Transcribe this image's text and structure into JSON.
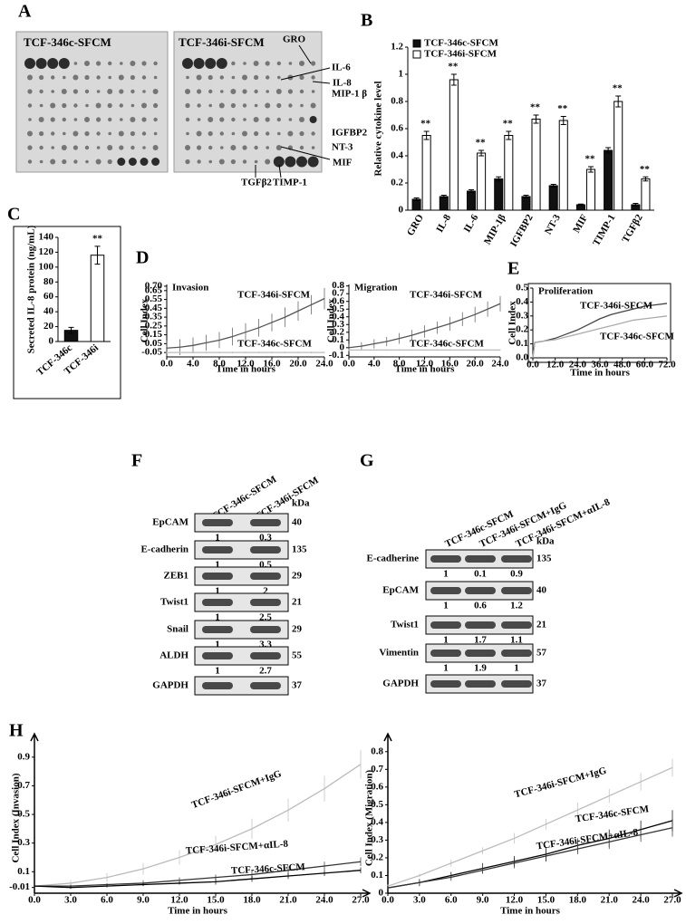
{
  "panel_labels": [
    "A",
    "B",
    "C",
    "D",
    "E",
    "F",
    "G",
    "H"
  ],
  "array_panel": {
    "titles": [
      "TCF-346c-SFCM",
      "TCF-346i-SFCM"
    ],
    "annotations": [
      "GRO",
      "IL-6",
      "IL-8",
      "MIP-1 β",
      "IGFBP2",
      "NT-3",
      "MIF",
      "TGFβ2",
      "TIMP-1"
    ]
  },
  "chart_data": [
    {
      "type": "bar",
      "ylabel": "Relative cytokine level",
      "categories": [
        "GRO",
        "IL-8",
        "IL-6",
        "MIP-1β",
        "IGFBP2",
        "NT-3",
        "MIF",
        "TIMP-1",
        "TGFβ2"
      ],
      "series": [
        {
          "name": "TCF-346c-SFCM",
          "color": "#111111",
          "values": [
            0.08,
            0.1,
            0.14,
            0.23,
            0.1,
            0.18,
            0.04,
            0.44,
            0.04
          ],
          "errors": [
            0.01,
            0.01,
            0.01,
            0.015,
            0.01,
            0.01,
            0.005,
            0.02,
            0.01
          ]
        },
        {
          "name": "TCF-346i-SFCM",
          "color": "#ffffff",
          "values": [
            0.55,
            0.96,
            0.42,
            0.55,
            0.67,
            0.66,
            0.3,
            0.8,
            0.23
          ],
          "errors": [
            0.03,
            0.04,
            0.02,
            0.03,
            0.03,
            0.03,
            0.02,
            0.04,
            0.015
          ]
        }
      ],
      "significance": [
        "**",
        "**",
        "**",
        "**",
        "**",
        "**",
        "**",
        "**",
        "**"
      ],
      "ylim": [
        0,
        1.2
      ],
      "yticks": [
        0,
        0.2,
        0.4,
        0.6,
        0.8,
        1,
        1.2
      ]
    },
    {
      "type": "bar",
      "ylabel": "Secreted IL-8 protein (ng/mL)",
      "categories": [
        "TCF-346c",
        "TCF-346i"
      ],
      "values": [
        15,
        116
      ],
      "errors": [
        4,
        12
      ],
      "colors": [
        "#111111",
        "#ffffff"
      ],
      "significance": [
        null,
        "**"
      ],
      "ylim": [
        0,
        140
      ],
      "yticks": [
        0,
        20,
        40,
        60,
        80,
        100,
        120,
        140
      ]
    },
    {
      "type": "line",
      "title": "Invasion",
      "ylabel": "Cell Index",
      "xlabel": "Time in hours",
      "x": [
        0,
        2,
        4,
        6,
        8,
        10,
        12,
        14,
        16,
        18,
        20,
        22,
        24
      ],
      "series": [
        {
          "name": "TCF-346i-SFCM",
          "color": "#555555",
          "values": [
            0,
            0.01,
            0.03,
            0.06,
            0.09,
            0.13,
            0.18,
            0.23,
            0.29,
            0.35,
            0.42,
            0.49,
            0.56
          ],
          "errors": [
            0.09,
            0.09,
            0.09,
            0.09,
            0.09,
            0.1,
            0.1,
            0.1,
            0.1,
            0.11,
            0.11,
            0.11,
            0.12
          ]
        },
        {
          "name": "TCF-346c-SFCM",
          "color": "#bbbbbb",
          "values": [
            -0.05,
            -0.05,
            -0.05,
            -0.05,
            -0.05,
            -0.05,
            -0.05,
            -0.05,
            -0.05,
            -0.05,
            -0.05,
            -0.05,
            -0.05
          ],
          "errors": [
            0.01,
            0.01,
            0.01,
            0.01,
            0.01,
            0.01,
            0.01,
            0.01,
            0.01,
            0.01,
            0.01,
            0.01,
            0.01
          ]
        }
      ],
      "xlim": [
        0,
        24
      ],
      "xticks": [
        {
          "value": 0,
          "label": "0.0"
        },
        {
          "value": 4,
          "label": "4.0"
        },
        {
          "value": 8,
          "label": "8.0"
        },
        {
          "value": 12,
          "label": "12.0"
        },
        {
          "value": 16,
          "label": "16.0"
        },
        {
          "value": 20,
          "label": "20.0"
        },
        {
          "value": 24,
          "label": "24.0"
        }
      ],
      "ylim": [
        -0.1,
        0.72
      ],
      "yticks": [
        -0.05,
        0.05,
        0.15,
        0.25,
        0.35,
        0.45,
        0.55,
        0.65,
        {
          "value": 0.7,
          "label": "0.70"
        }
      ]
    },
    {
      "type": "line",
      "title": "Migration",
      "ylabel": "Cell Index",
      "xlabel": "Time in hours",
      "x": [
        0,
        2,
        4,
        6,
        8,
        10,
        12,
        14,
        16,
        18,
        20,
        22,
        24
      ],
      "series": [
        {
          "name": "TCF-346i-SFCM",
          "color": "#555555",
          "values": [
            0,
            0.02,
            0.05,
            0.08,
            0.12,
            0.16,
            0.21,
            0.26,
            0.31,
            0.37,
            0.43,
            0.5,
            0.57
          ],
          "errors": [
            0.05,
            0.05,
            0.06,
            0.06,
            0.07,
            0.07,
            0.08,
            0.08,
            0.09,
            0.09,
            0.1,
            0.1,
            0.1
          ]
        },
        {
          "name": "TCF-346c-SFCM",
          "color": "#bbbbbb",
          "values": [
            -0.03,
            -0.03,
            -0.03,
            -0.03,
            -0.03,
            -0.03,
            -0.03,
            -0.03,
            -0.03,
            -0.03,
            -0.03,
            -0.03,
            -0.03
          ],
          "errors": [
            0.01,
            0.01,
            0.01,
            0.01,
            0.01,
            0.01,
            0.01,
            0.01,
            0.01,
            0.01,
            0.01,
            0.01,
            0.01
          ]
        }
      ],
      "xlim": [
        0,
        24
      ],
      "xticks": [
        {
          "value": 0,
          "label": "0.0"
        },
        {
          "value": 4,
          "label": "4.0"
        },
        {
          "value": 8,
          "label": "8.0"
        },
        {
          "value": 12,
          "label": "12.0"
        },
        {
          "value": 16,
          "label": "16.0"
        },
        {
          "value": 20,
          "label": "20.0"
        },
        {
          "value": 24,
          "label": "24.0"
        }
      ],
      "ylim": [
        -0.12,
        0.82
      ],
      "yticks": [
        -0.1,
        0,
        0.1,
        0.2,
        0.3,
        0.4,
        0.5,
        0.6,
        0.7,
        0.8
      ]
    },
    {
      "type": "line",
      "title": "Proliferation",
      "ylabel": "Cell Index",
      "xlabel": "Time in hours",
      "x": [
        0,
        1,
        6,
        12,
        18,
        24,
        30,
        36,
        42,
        48,
        54,
        60,
        66,
        72
      ],
      "series": [
        {
          "name": "TCF-346i-SFCM",
          "color": "#444444",
          "values": [
            0,
            0.11,
            0.12,
            0.14,
            0.17,
            0.2,
            0.24,
            0.28,
            0.31,
            0.33,
            0.35,
            0.37,
            0.38,
            0.39
          ]
        },
        {
          "name": "TCF-346c-SFCM",
          "color": "#aaaaaa",
          "values": [
            0,
            0.11,
            0.12,
            0.13,
            0.15,
            0.17,
            0.19,
            0.21,
            0.23,
            0.25,
            0.27,
            0.28,
            0.29,
            0.3
          ]
        }
      ],
      "xlim": [
        0,
        72
      ],
      "xticks": [
        {
          "value": 0,
          "label": "0.0"
        },
        {
          "value": 12,
          "label": "12.0"
        },
        {
          "value": 24,
          "label": "24.0"
        },
        {
          "value": 36,
          "label": "36.0"
        },
        {
          "value": 48,
          "label": "48.0"
        },
        {
          "value": 60,
          "label": "60.0"
        },
        {
          "value": 72,
          "label": "72.0"
        }
      ],
      "ylim": [
        0,
        0.5
      ],
      "yticks": [
        {
          "value": 0,
          "label": "0.0"
        },
        0.1,
        0.2,
        0.3,
        0.4,
        0.5
      ]
    },
    {
      "type": "line",
      "ylabel": "Cell Index (Invasion)",
      "xlabel": "Time in hours",
      "x": [
        0,
        3,
        6,
        9,
        12,
        15,
        18,
        21,
        24,
        27
      ],
      "series": [
        {
          "name": "TCF-346i-SFCM+IgG",
          "color": "#bbbbbb",
          "values": [
            0,
            0.02,
            0.06,
            0.12,
            0.2,
            0.29,
            0.4,
            0.53,
            0.68,
            0.85
          ],
          "errors": [
            0.01,
            0.02,
            0.03,
            0.04,
            0.05,
            0.06,
            0.07,
            0.08,
            0.09,
            0.1
          ]
        },
        {
          "name": "TCF-346i-SFCM+αIL-8",
          "color": "#333333",
          "values": [
            0,
            0,
            0.01,
            0.02,
            0.04,
            0.06,
            0.08,
            0.11,
            0.14,
            0.17
          ],
          "errors": [
            0.01,
            0.01,
            0.01,
            0.02,
            0.02,
            0.02,
            0.03,
            0.03,
            0.03,
            0.03
          ]
        },
        {
          "name": "TCF-346c-SFCM",
          "color": "#000000",
          "values": [
            0,
            -0.01,
            0,
            0.01,
            0.02,
            0.03,
            0.05,
            0.07,
            0.09,
            0.11
          ],
          "errors": [
            0.01,
            0.01,
            0.01,
            0.01,
            0.01,
            0.02,
            0.02,
            0.02,
            0.02,
            0.02
          ]
        }
      ],
      "xlim": [
        0,
        27
      ],
      "xticks": [
        {
          "value": 0,
          "label": "0.0"
        },
        {
          "value": 3,
          "label": "3.0"
        },
        {
          "value": 6,
          "label": "6.0"
        },
        {
          "value": 9,
          "label": "9.0"
        },
        {
          "value": 12,
          "label": "12.0"
        },
        {
          "value": 15,
          "label": "15.0"
        },
        {
          "value": 18,
          "label": "18.0"
        },
        {
          "value": 21,
          "label": "21.0"
        },
        {
          "value": 24,
          "label": "24.0"
        },
        {
          "value": 27,
          "label": "27.0"
        }
      ],
      "ylim": [
        -0.05,
        1
      ],
      "yticks": [
        -0.01,
        0.1,
        0.3,
        0.5,
        0.7,
        0.9
      ]
    },
    {
      "type": "line",
      "ylabel": "Cell Index (Migration)",
      "xlabel": "Time in hours",
      "x": [
        0,
        3,
        6,
        9,
        12,
        15,
        18,
        21,
        24,
        27
      ],
      "series": [
        {
          "name": "TCF-346i-SFCM+IgG",
          "color": "#bbbbbb",
          "values": [
            0.04,
            0.1,
            0.17,
            0.24,
            0.31,
            0.39,
            0.47,
            0.55,
            0.63,
            0.71
          ],
          "errors": [
            0.01,
            0.01,
            0.02,
            0.02,
            0.03,
            0.03,
            0.04,
            0.04,
            0.05,
            0.05
          ]
        },
        {
          "name": "TCF-346c-SFCM",
          "color": "#000000",
          "values": [
            0.03,
            0.06,
            0.1,
            0.14,
            0.18,
            0.22,
            0.27,
            0.31,
            0.36,
            0.41
          ],
          "errors": [
            0.01,
            0.02,
            0.02,
            0.03,
            0.03,
            0.04,
            0.04,
            0.05,
            0.05,
            0.06
          ]
        },
        {
          "name": "TCF-346i-SFCM+αIL-8",
          "color": "#333333",
          "values": [
            0.03,
            0.06,
            0.09,
            0.13,
            0.17,
            0.21,
            0.25,
            0.29,
            0.33,
            0.37
          ],
          "errors": [
            0.01,
            0.01,
            0.02,
            0.02,
            0.03,
            0.03,
            0.03,
            0.04,
            0.04,
            0.05
          ]
        }
      ],
      "xlim": [
        0,
        27
      ],
      "xticks": [
        {
          "value": 0,
          "label": "0.0"
        },
        {
          "value": 3,
          "label": "3.0"
        },
        {
          "value": 6,
          "label": "6.0"
        },
        {
          "value": 9,
          "label": "9.0"
        },
        {
          "value": 12,
          "label": "12.0"
        },
        {
          "value": 15,
          "label": "15.0"
        },
        {
          "value": 18,
          "label": "18.0"
        },
        {
          "value": 21,
          "label": "21.0"
        },
        {
          "value": 24,
          "label": "24.0"
        },
        {
          "value": 27,
          "label": "27.0"
        }
      ],
      "ylim": [
        0,
        0.85
      ],
      "yticks": [
        0,
        0.1,
        0.2,
        0.3,
        0.4,
        0.5,
        0.6,
        0.7,
        0.8
      ]
    }
  ],
  "blots": [
    {
      "columns": [
        "TCF-346c-SFCM",
        "TCF-346i-SFCM"
      ],
      "unit": "kDa",
      "rows": [
        {
          "name": "EpCAM",
          "kda": 40,
          "quant": [
            1,
            0.3
          ]
        },
        {
          "name": "E-cadherin",
          "kda": 135,
          "quant": [
            1,
            0.5
          ]
        },
        {
          "name": "ZEB1",
          "kda": 29,
          "quant": [
            1,
            2
          ]
        },
        {
          "name": "Twist1",
          "kda": 21,
          "quant": [
            1,
            2.5
          ]
        },
        {
          "name": "Snail",
          "kda": 29,
          "quant": [
            1,
            3.3
          ]
        },
        {
          "name": "ALDH",
          "kda": 55,
          "quant": [
            1,
            2.7
          ]
        },
        {
          "name": "GAPDH",
          "kda": 37
        }
      ]
    },
    {
      "columns": [
        "TCF-346c-SFCM",
        "TCF-346i-SFCM+IgG",
        "TCF-346i-SFCM+αIL-8"
      ],
      "unit": "kDa",
      "rows": [
        {
          "name": "E-cadherine",
          "kda": 135,
          "quant": [
            1,
            0.1,
            0.9
          ]
        },
        {
          "name": "EpCAM",
          "kda": 40,
          "quant": [
            1,
            0.6,
            1.2
          ]
        },
        {
          "name": "Twist1",
          "kda": 21,
          "quant": [
            1,
            1.7,
            1.1
          ]
        },
        {
          "name": "Vimentin",
          "kda": 57,
          "quant": [
            1,
            1.9,
            1
          ]
        },
        {
          "name": "GAPDH",
          "kda": 37
        }
      ]
    }
  ]
}
